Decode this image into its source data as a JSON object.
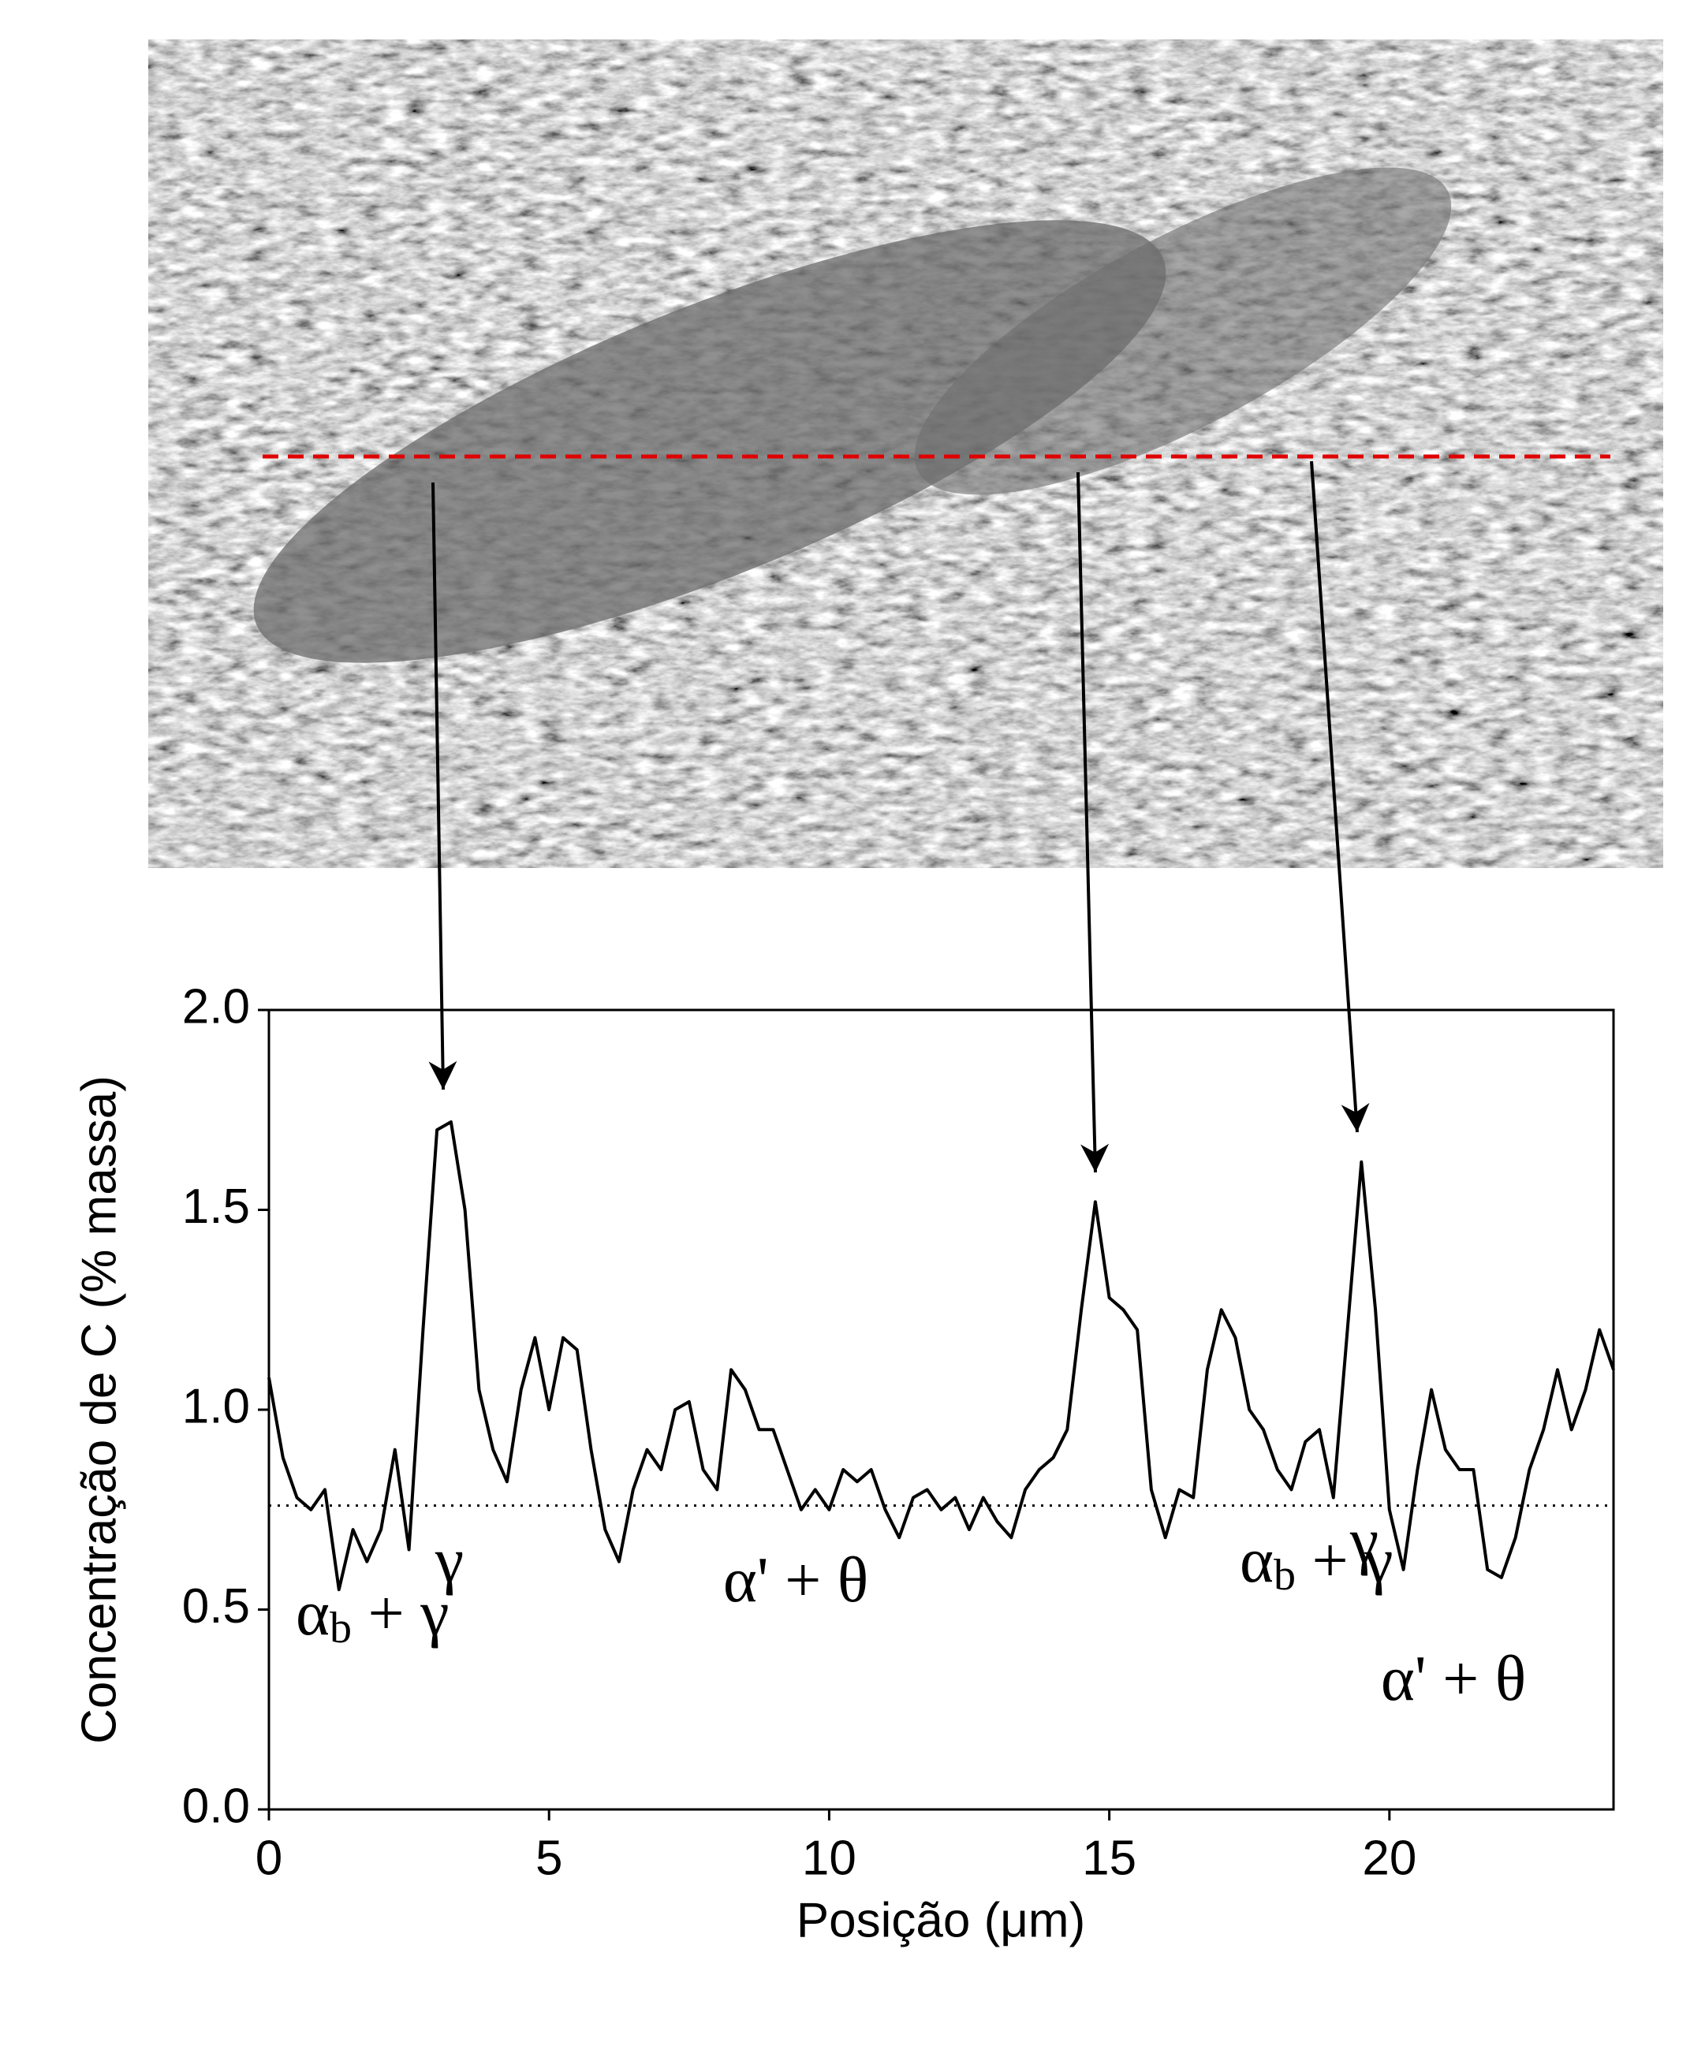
{
  "chart_data": {
    "type": "line",
    "xlabel": "Posição (μm)",
    "ylabel": "Concentração de C (% massa)",
    "xlim": [
      0,
      24
    ],
    "xticks": [
      0,
      5,
      10,
      15,
      20
    ],
    "ylim": [
      0,
      2
    ],
    "yticks": [
      {
        "value": 0,
        "label": "0.0"
      },
      {
        "value": 0.5,
        "label": "0.5"
      },
      {
        "value": 1,
        "label": "1.0"
      },
      {
        "value": 1.5,
        "label": "1.5"
      },
      {
        "value": 2,
        "label": "2.0"
      }
    ],
    "reference_line": 0.76,
    "color": "#000000",
    "x": [
      0,
      0.25,
      0.5,
      0.75,
      1,
      1.25,
      1.5,
      1.75,
      2,
      2.25,
      2.5,
      2.75,
      3,
      3.25,
      3.5,
      3.75,
      4,
      4.25,
      4.5,
      4.75,
      5,
      5.25,
      5.5,
      5.75,
      6,
      6.25,
      6.5,
      6.75,
      7,
      7.25,
      7.5,
      7.75,
      8,
      8.25,
      8.5,
      8.75,
      9,
      9.25,
      9.5,
      9.75,
      10,
      10.25,
      10.5,
      10.75,
      11,
      11.25,
      11.5,
      11.75,
      12,
      12.25,
      12.5,
      12.75,
      13,
      13.25,
      13.5,
      13.75,
      14,
      14.25,
      14.5,
      14.75,
      15,
      15.25,
      15.5,
      15.75,
      16,
      16.25,
      16.5,
      16.75,
      17,
      17.25,
      17.5,
      17.75,
      18,
      18.25,
      18.5,
      18.75,
      19,
      19.25,
      19.5,
      19.75,
      20,
      20.25,
      20.5,
      20.75,
      21,
      21.25,
      21.5,
      21.75,
      22,
      22.25,
      22.5,
      22.75,
      23,
      23.25,
      23.5,
      23.75,
      24
    ],
    "values": [
      1.08,
      0.88,
      0.78,
      0.75,
      0.8,
      0.55,
      0.7,
      0.62,
      0.7,
      0.9,
      0.65,
      1.2,
      1.7,
      1.72,
      1.5,
      1.05,
      0.9,
      0.82,
      1.05,
      1.18,
      1.0,
      1.18,
      1.15,
      0.9,
      0.7,
      0.62,
      0.8,
      0.9,
      0.85,
      1.0,
      1.02,
      0.85,
      0.8,
      1.1,
      1.05,
      0.95,
      0.95,
      0.85,
      0.75,
      0.8,
      0.75,
      0.85,
      0.82,
      0.85,
      0.75,
      0.68,
      0.78,
      0.8,
      0.75,
      0.78,
      0.7,
      0.78,
      0.72,
      0.68,
      0.8,
      0.85,
      0.88,
      0.95,
      1.25,
      1.52,
      1.28,
      1.25,
      1.2,
      0.8,
      0.68,
      0.8,
      0.78,
      1.1,
      1.25,
      1.18,
      1.0,
      0.95,
      0.85,
      0.8,
      0.92,
      0.95,
      0.78,
      1.2,
      1.62,
      1.25,
      0.75,
      0.6,
      0.85,
      1.05,
      0.9,
      0.85,
      0.85,
      0.6,
      0.58,
      0.68,
      0.85,
      0.95,
      1.1,
      0.95,
      1.05,
      1.2,
      1.1
    ],
    "annotations": [
      {
        "base": "γ"
      },
      {
        "base": "α",
        "sub": "b",
        "rest": " + γ"
      },
      {
        "base": "α' + θ"
      },
      {
        "base": "α",
        "sub": "b",
        "rest": " + γ"
      },
      {
        "base": "γ"
      },
      {
        "base": "α' + θ"
      }
    ]
  }
}
